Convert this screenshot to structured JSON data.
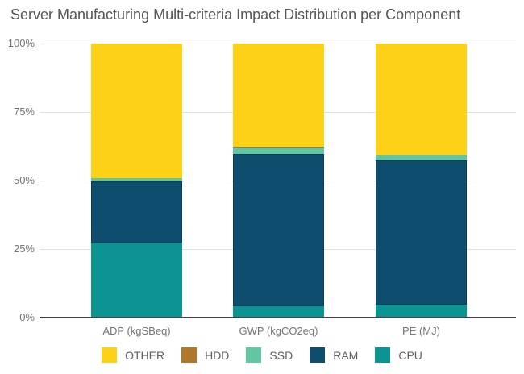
{
  "chart_data": {
    "type": "bar",
    "variant": "stacked-100-percent-column",
    "title": "Server Manufacturing Multi-criteria Impact Distribution per Component",
    "xlabel": "",
    "ylabel": "",
    "categories": [
      "ADP (kgSBeq)",
      "GWP (kgCO2eq)",
      "PE (MJ)"
    ],
    "series": [
      {
        "name": "OTHER",
        "color": "#FCD116",
        "values": [
          49.0,
          37.7,
          40.5
        ]
      },
      {
        "name": "HDD",
        "color": "#B0772C",
        "values": [
          0.1,
          0.1,
          0.1
        ]
      },
      {
        "name": "SSD",
        "color": "#62C6A2",
        "values": [
          1.2,
          2.6,
          2.2
        ]
      },
      {
        "name": "RAM",
        "color": "#0E4D6D",
        "values": [
          22.4,
          55.5,
          52.6
        ]
      },
      {
        "name": "CPU",
        "color": "#0B9491",
        "values": [
          27.3,
          4.1,
          4.6
        ]
      }
    ],
    "yticks": [
      "0%",
      "25%",
      "50%",
      "75%",
      "100%"
    ],
    "ylim": [
      0,
      100
    ],
    "grid": true,
    "legend_position": "bottom"
  }
}
